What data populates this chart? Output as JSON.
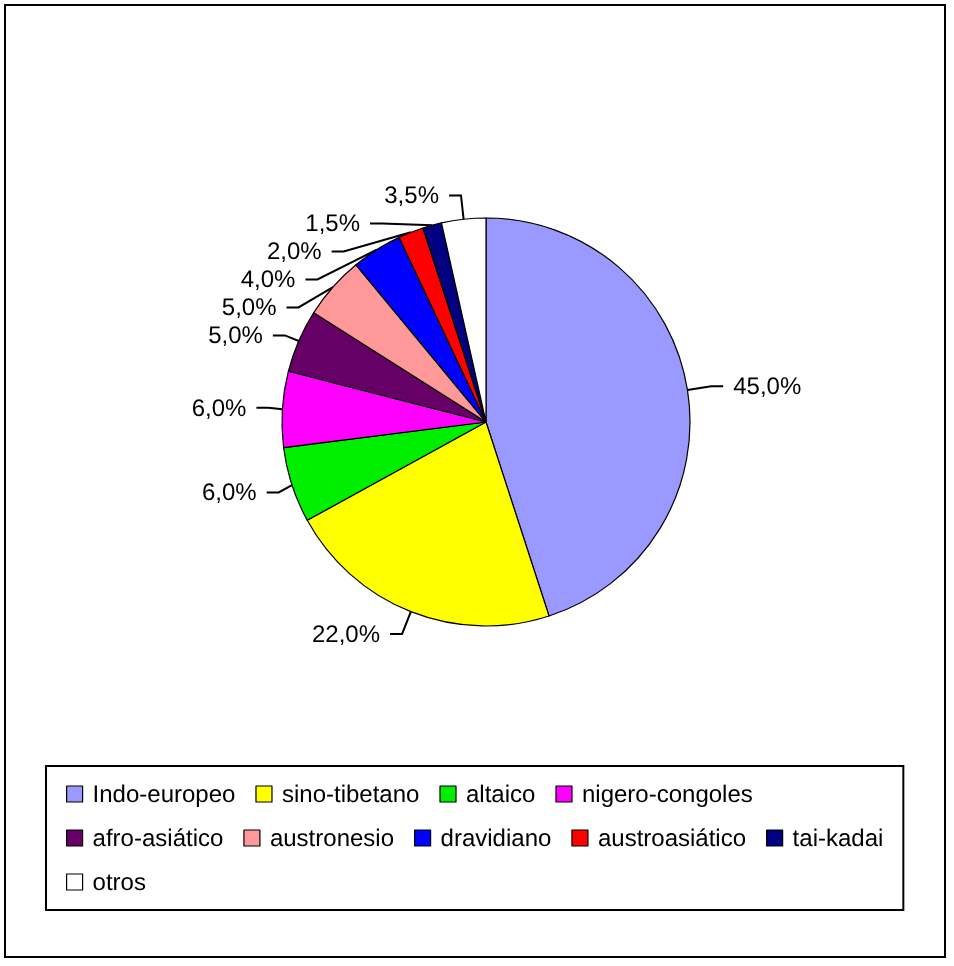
{
  "chart_data": {
    "type": "pie",
    "categories": [
      "Indo-europeo",
      "sino-tibetano",
      "altaico",
      "nigero-congoles",
      "afro-asiático",
      "austronesio",
      "dravidiano",
      "austroasiático",
      "tai-kadai",
      "otros"
    ],
    "values": [
      45,
      22,
      6,
      6,
      5,
      5,
      4,
      2,
      1.5,
      3.5
    ],
    "value_labels": [
      "45,0%",
      "22,0%",
      "6,0%",
      "6,0%",
      "5,0%",
      "5,0%",
      "4,0%",
      "2,0%",
      "1,5%",
      "3,5%"
    ],
    "colors": [
      "#9999ff",
      "#ffff00",
      "#00ee00",
      "#ff00ff",
      "#660066",
      "#ff9999",
      "#0000ff",
      "#ff0000",
      "#000080",
      "#ffffff"
    ],
    "legend": "bottom"
  }
}
